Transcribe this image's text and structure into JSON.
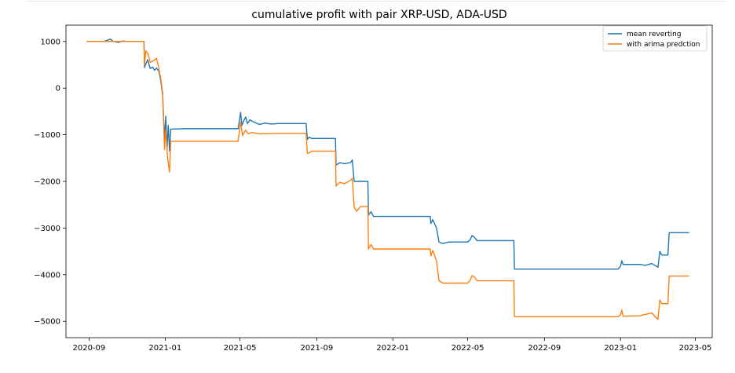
{
  "chart_data": {
    "type": "line",
    "title": "cumulative profit with pair XRP-USD, ADA-USD",
    "xlabel": "",
    "ylabel": "",
    "x_ticks": [
      "2020-09",
      "2021-01",
      "2021-05",
      "2021-09",
      "2022-01",
      "2022-05",
      "2022-09",
      "2023-01",
      "2023-05"
    ],
    "y_ticks": [
      "1000",
      "0",
      "−1000",
      "−2000",
      "−3000",
      "−4000",
      "−5000"
    ],
    "xlim": [
      "2020-07-26",
      "2023-05-28"
    ],
    "ylim": [
      -5350,
      1350
    ],
    "grid": false,
    "legend_position": "top-right",
    "series": [
      {
        "name": "mean reverting",
        "color": "#1f77b4",
        "points": [
          [
            "2020-08-28",
            1000
          ],
          [
            "2020-09-25",
            1000
          ],
          [
            "2020-10-01",
            1030
          ],
          [
            "2020-10-05",
            1050
          ],
          [
            "2020-10-10",
            1000
          ],
          [
            "2020-10-18",
            980
          ],
          [
            "2020-10-25",
            1010
          ],
          [
            "2020-11-01",
            1000
          ],
          [
            "2020-11-20",
            1000
          ],
          [
            "2020-11-28",
            1000
          ],
          [
            "2020-11-29",
            440
          ],
          [
            "2020-12-01",
            520
          ],
          [
            "2020-12-04",
            610
          ],
          [
            "2020-12-06",
            520
          ],
          [
            "2020-12-08",
            420
          ],
          [
            "2020-12-12",
            450
          ],
          [
            "2020-12-15",
            380
          ],
          [
            "2020-12-18",
            430
          ],
          [
            "2020-12-22",
            360
          ],
          [
            "2020-12-25",
            150
          ],
          [
            "2020-12-28",
            -150
          ],
          [
            "2020-12-31",
            -1100
          ],
          [
            "2021-01-02",
            -600
          ],
          [
            "2021-01-04",
            -1300
          ],
          [
            "2021-01-06",
            -800
          ],
          [
            "2021-01-08",
            -1350
          ],
          [
            "2021-01-10",
            -880
          ],
          [
            "2021-02-01",
            -870
          ],
          [
            "2021-04-28",
            -870
          ],
          [
            "2021-04-30",
            -700
          ],
          [
            "2021-05-02",
            -520
          ],
          [
            "2021-05-04",
            -800
          ],
          [
            "2021-05-07",
            -700
          ],
          [
            "2021-05-10",
            -620
          ],
          [
            "2021-05-13",
            -760
          ],
          [
            "2021-05-17",
            -680
          ],
          [
            "2021-05-22",
            -720
          ],
          [
            "2021-06-01",
            -780
          ],
          [
            "2021-06-10",
            -750
          ],
          [
            "2021-06-20",
            -770
          ],
          [
            "2021-07-01",
            -760
          ],
          [
            "2021-08-15",
            -760
          ],
          [
            "2021-08-17",
            -1100
          ],
          [
            "2021-08-20",
            -1050
          ],
          [
            "2021-08-24",
            -1080
          ],
          [
            "2021-10-01",
            -1080
          ],
          [
            "2021-10-02",
            -1650
          ],
          [
            "2021-10-08",
            -1600
          ],
          [
            "2021-10-15",
            -1620
          ],
          [
            "2021-10-25",
            -1600
          ],
          [
            "2021-10-28",
            -1540
          ],
          [
            "2021-10-31",
            -2000
          ],
          [
            "2021-11-10",
            -2000
          ],
          [
            "2021-11-22",
            -2000
          ],
          [
            "2021-11-23",
            -2720
          ],
          [
            "2021-11-27",
            -2650
          ],
          [
            "2021-12-01",
            -2750
          ],
          [
            "2022-02-15",
            -2750
          ],
          [
            "2022-03-02",
            -2750
          ],
          [
            "2022-03-03",
            -2900
          ],
          [
            "2022-03-06",
            -2820
          ],
          [
            "2022-03-12",
            -3000
          ],
          [
            "2022-03-16",
            -3300
          ],
          [
            "2022-03-22",
            -3330
          ],
          [
            "2022-04-01",
            -3300
          ],
          [
            "2022-05-01",
            -3300
          ],
          [
            "2022-05-05",
            -3250
          ],
          [
            "2022-05-08",
            -3160
          ],
          [
            "2022-05-12",
            -3200
          ],
          [
            "2022-05-16",
            -3270
          ],
          [
            "2022-06-10",
            -3270
          ],
          [
            "2022-07-14",
            -3270
          ],
          [
            "2022-07-15",
            -3880
          ],
          [
            "2022-12-28",
            -3880
          ],
          [
            "2023-01-01",
            -3820
          ],
          [
            "2023-01-03",
            -3700
          ],
          [
            "2023-01-05",
            -3780
          ],
          [
            "2023-02-01",
            -3780
          ],
          [
            "2023-02-10",
            -3800
          ],
          [
            "2023-02-20",
            -3760
          ],
          [
            "2023-03-02",
            -3840
          ],
          [
            "2023-03-05",
            -3500
          ],
          [
            "2023-03-08",
            -3580
          ],
          [
            "2023-03-18",
            -3580
          ],
          [
            "2023-03-20",
            -3100
          ],
          [
            "2023-04-21",
            -3100
          ]
        ]
      },
      {
        "name": "with arima predction",
        "color": "#ff7f0e",
        "points": [
          [
            "2020-08-28",
            1000
          ],
          [
            "2020-10-01",
            1000
          ],
          [
            "2020-10-10",
            1000
          ],
          [
            "2020-11-28",
            1000
          ],
          [
            "2020-11-29",
            500
          ],
          [
            "2020-12-01",
            800
          ],
          [
            "2020-12-05",
            720
          ],
          [
            "2020-12-08",
            550
          ],
          [
            "2020-12-12",
            580
          ],
          [
            "2020-12-15",
            600
          ],
          [
            "2020-12-18",
            640
          ],
          [
            "2020-12-21",
            480
          ],
          [
            "2020-12-25",
            200
          ],
          [
            "2020-12-28",
            -100
          ],
          [
            "2020-12-31",
            -1320
          ],
          [
            "2021-01-02",
            -900
          ],
          [
            "2021-01-05",
            -1500
          ],
          [
            "2021-01-08",
            -1800
          ],
          [
            "2021-01-10",
            -1140
          ],
          [
            "2021-02-01",
            -1140
          ],
          [
            "2021-04-28",
            -1140
          ],
          [
            "2021-04-30",
            -920
          ],
          [
            "2021-05-02",
            -730
          ],
          [
            "2021-05-05",
            -1020
          ],
          [
            "2021-05-10",
            -900
          ],
          [
            "2021-05-14",
            -980
          ],
          [
            "2021-05-20",
            -950
          ],
          [
            "2021-06-01",
            -980
          ],
          [
            "2021-07-01",
            -970
          ],
          [
            "2021-08-15",
            -970
          ],
          [
            "2021-08-17",
            -1400
          ],
          [
            "2021-08-21",
            -1380
          ],
          [
            "2021-08-24",
            -1350
          ],
          [
            "2021-10-01",
            -1350
          ],
          [
            "2021-10-02",
            -2100
          ],
          [
            "2021-10-08",
            -2020
          ],
          [
            "2021-10-15",
            -2050
          ],
          [
            "2021-10-25",
            -1980
          ],
          [
            "2021-10-28",
            -1930
          ],
          [
            "2021-10-31",
            -2550
          ],
          [
            "2021-11-04",
            -2640
          ],
          [
            "2021-11-10",
            -2540
          ],
          [
            "2021-11-22",
            -2540
          ],
          [
            "2021-11-23",
            -3450
          ],
          [
            "2021-11-27",
            -3350
          ],
          [
            "2021-12-01",
            -3450
          ],
          [
            "2022-02-15",
            -3450
          ],
          [
            "2022-03-02",
            -3450
          ],
          [
            "2022-03-03",
            -3600
          ],
          [
            "2022-03-06",
            -3480
          ],
          [
            "2022-03-12",
            -3700
          ],
          [
            "2022-03-16",
            -4130
          ],
          [
            "2022-03-22",
            -4180
          ],
          [
            "2022-05-01",
            -4180
          ],
          [
            "2022-05-05",
            -4120
          ],
          [
            "2022-05-08",
            -4020
          ],
          [
            "2022-05-12",
            -4050
          ],
          [
            "2022-05-16",
            -4130
          ],
          [
            "2022-07-14",
            -4130
          ],
          [
            "2022-07-15",
            -4900
          ],
          [
            "2022-12-28",
            -4900
          ],
          [
            "2023-01-01",
            -4860
          ],
          [
            "2023-01-03",
            -4760
          ],
          [
            "2023-01-05",
            -4890
          ],
          [
            "2023-02-01",
            -4880
          ],
          [
            "2023-02-10",
            -4850
          ],
          [
            "2023-02-20",
            -4820
          ],
          [
            "2023-03-02",
            -4960
          ],
          [
            "2023-03-05",
            -4540
          ],
          [
            "2023-03-08",
            -4620
          ],
          [
            "2023-03-18",
            -4620
          ],
          [
            "2023-03-20",
            -4030
          ],
          [
            "2023-04-21",
            -4030
          ]
        ]
      }
    ]
  }
}
